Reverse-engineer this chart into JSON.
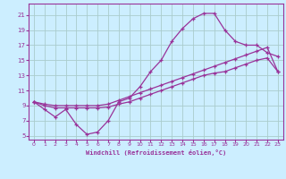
{
  "background_color": "#cceeff",
  "grid_color": "#aacccc",
  "line_color": "#993399",
  "xlabel": "Windchill (Refroidissement éolien,°C)",
  "xlim": [
    -0.5,
    23.5
  ],
  "ylim": [
    4.5,
    22.5
  ],
  "xticks": [
    0,
    1,
    2,
    3,
    4,
    5,
    6,
    7,
    8,
    9,
    10,
    11,
    12,
    13,
    14,
    15,
    16,
    17,
    18,
    19,
    20,
    21,
    22,
    23
  ],
  "yticks": [
    5,
    7,
    9,
    11,
    13,
    15,
    17,
    19,
    21
  ],
  "curve1_x": [
    0,
    1,
    2,
    3,
    4,
    5,
    6,
    7,
    8,
    9,
    10,
    11,
    12,
    13,
    14,
    15,
    16,
    17,
    18,
    19,
    20,
    21,
    22,
    23
  ],
  "curve1_y": [
    9.5,
    8.5,
    7.5,
    8.5,
    6.5,
    5.2,
    5.5,
    7.0,
    9.5,
    10.0,
    11.5,
    13.5,
    15.0,
    17.5,
    19.2,
    20.5,
    21.2,
    21.2,
    19.0,
    17.5,
    17.0,
    17.0,
    16.0,
    15.5
  ],
  "curve2_x": [
    0,
    1,
    2,
    3,
    4,
    5,
    6,
    7,
    8,
    9,
    10,
    11,
    12,
    13,
    14,
    15,
    16,
    17,
    18,
    19,
    20,
    21,
    22,
    23
  ],
  "curve2_y": [
    9.5,
    9.0,
    8.7,
    8.7,
    8.7,
    8.7,
    8.7,
    8.8,
    9.2,
    9.5,
    10.0,
    10.5,
    11.0,
    11.5,
    12.0,
    12.5,
    13.0,
    13.3,
    13.5,
    14.0,
    14.5,
    15.0,
    15.3,
    13.5
  ],
  "curve3_x": [
    0,
    1,
    2,
    3,
    4,
    5,
    6,
    7,
    8,
    9,
    10,
    11,
    12,
    13,
    14,
    15,
    16,
    17,
    18,
    19,
    20,
    21,
    22,
    23
  ],
  "curve3_y": [
    9.5,
    9.2,
    9.0,
    9.0,
    9.0,
    9.0,
    9.0,
    9.2,
    9.7,
    10.2,
    10.7,
    11.2,
    11.7,
    12.2,
    12.7,
    13.2,
    13.7,
    14.2,
    14.7,
    15.2,
    15.7,
    16.2,
    16.7,
    13.5
  ]
}
